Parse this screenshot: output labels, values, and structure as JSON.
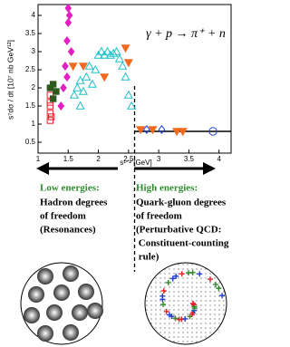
{
  "chart_data": {
    "type": "scatter",
    "y_label": "s⁷dσ / dt  [10⁷ nb GeV¹²]",
    "x_label": "s¹ᐟ² [GeV]",
    "annotation": "γ + p → π⁺ + n",
    "xlim": [
      1,
      4.2
    ],
    "xticks": [
      1,
      1.5,
      2,
      2.5,
      3,
      3.5,
      4
    ],
    "ylim": [
      0.2,
      4.3
    ],
    "yticks": [
      0.5,
      1,
      1.5,
      2,
      2.5,
      3,
      3.5,
      4
    ],
    "series": [
      {
        "color": "#e8202a",
        "marker": "square",
        "filled": false,
        "x": [
          1.2,
          1.2,
          1.2,
          1.2,
          1.2,
          1.22
        ],
        "y": [
          1.1,
          1.3,
          1.5,
          1.6,
          1.8,
          1.2
        ]
      },
      {
        "color": "#2f5a1f",
        "marker": "square",
        "filled": true,
        "x": [
          1.2,
          1.25,
          1.3,
          1.25
        ],
        "y": [
          2.0,
          2.1,
          1.9,
          1.7
        ]
      },
      {
        "color": "#e020c0",
        "marker": "diamond",
        "filled": true,
        "x": [
          1.38,
          1.42,
          1.45,
          1.48,
          1.5,
          1.52,
          1.5,
          1.55,
          1.48
        ],
        "y": [
          1.5,
          2.0,
          2.6,
          3.3,
          3.8,
          4.0,
          4.2,
          3.0,
          2.3
        ]
      },
      {
        "color": "#20c0c8",
        "marker": "triangle",
        "filled": false,
        "x": [
          1.6,
          1.65,
          1.7,
          1.75,
          1.8,
          1.85,
          1.9,
          1.95,
          2.0,
          2.05,
          2.1,
          2.15,
          2.2,
          2.25,
          2.3,
          2.35,
          2.4,
          2.45,
          2.5,
          2.55,
          1.7
        ],
        "y": [
          1.8,
          2.0,
          2.2,
          1.9,
          2.3,
          2.6,
          2.1,
          2.5,
          2.9,
          3.0,
          2.9,
          3.0,
          2.9,
          2.95,
          3.0,
          2.8,
          2.6,
          2.3,
          1.8,
          1.5,
          1.5
        ]
      },
      {
        "color": "#f06a20",
        "marker": "tri-down",
        "filled": true,
        "x": [
          1.58,
          1.75,
          2.1,
          2.45,
          2.5,
          2.7,
          2.9,
          3.3,
          3.4
        ],
        "y": [
          2.6,
          2.6,
          2.3,
          3.1,
          2.7,
          0.85,
          0.85,
          0.8,
          0.8
        ]
      },
      {
        "color": "#2040d0",
        "marker": "diamond",
        "filled": false,
        "x": [
          2.8,
          3.05
        ],
        "y": [
          0.85,
          0.85
        ]
      },
      {
        "color": "#2040d0",
        "marker": "circle",
        "filled": false,
        "x": [
          3.9
        ],
        "y": [
          0.8
        ]
      }
    ],
    "reference_line": {
      "y": 0.8,
      "x": [
        2.6,
        4.2
      ]
    },
    "divider_x": 2.6
  },
  "panels": {
    "left": {
      "title": "Low energies:",
      "lines": [
        "Hadron degrees",
        "of freedom",
        "(Resonances)"
      ]
    },
    "right": {
      "title": "High energies:",
      "lines": [
        "Quark-gluon degrees",
        "of freedom",
        "(Perturbative QCD:",
        " Constituent-counting",
        " rule)"
      ]
    }
  }
}
